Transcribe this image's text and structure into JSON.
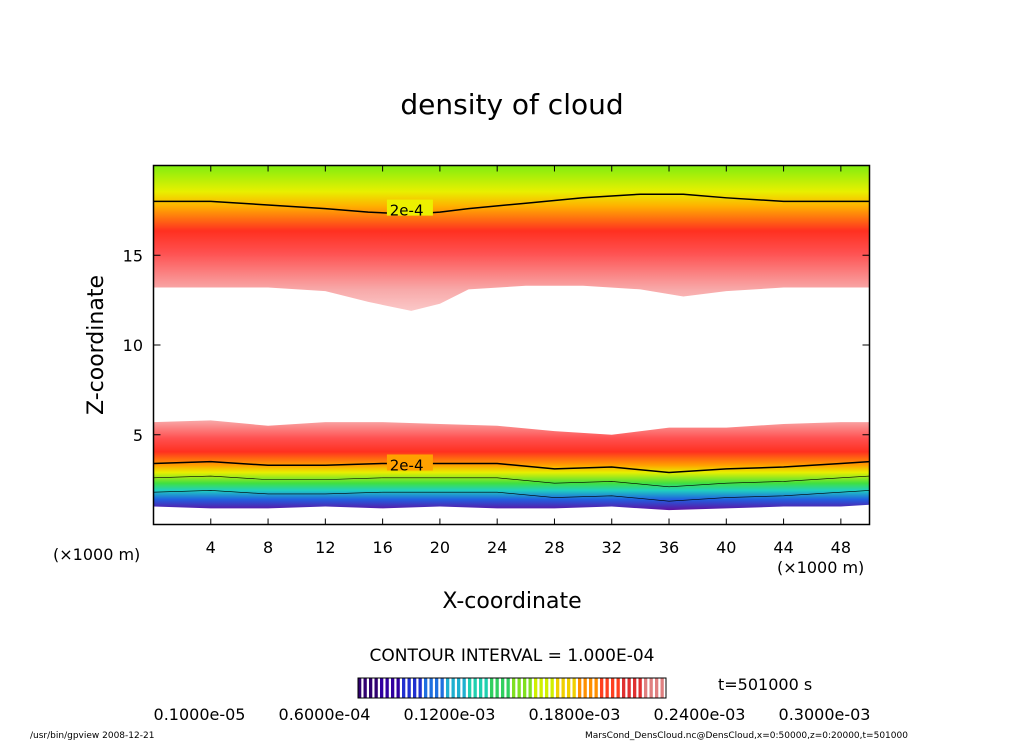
{
  "chart_data": {
    "type": "heatmap",
    "title": "density of cloud",
    "xlabel": "X-coordinate",
    "ylabel": "Z-coordinate",
    "x_unit": "(×1000 m)",
    "y_unit": "(×1000 m)",
    "xlim": [
      0,
      50
    ],
    "ylim": [
      0,
      20
    ],
    "x_ticks": [
      4,
      8,
      12,
      16,
      20,
      24,
      28,
      32,
      36,
      40,
      44,
      48
    ],
    "y_ticks": [
      5,
      10,
      15
    ],
    "contour_label": "2e-4",
    "contour_interval": "CONTOUR INTERVAL = 1.000E-04",
    "colorbar_labels": [
      "0.1000e-05",
      "0.6000e-04",
      "0.1200e-03",
      "0.1800e-03",
      "0.2400e-03",
      "0.3000e-03"
    ],
    "time_label": "t=501000 s",
    "upper_cloud": {
      "x": [
        0,
        4,
        8,
        12,
        15,
        18,
        20,
        22,
        26,
        30,
        34,
        37,
        40,
        44,
        48,
        50
      ],
      "bottom_z": [
        13.2,
        13.2,
        13.2,
        13.0,
        12.4,
        11.9,
        12.3,
        13.1,
        13.3,
        13.3,
        13.1,
        12.7,
        13.0,
        13.2,
        13.2,
        13.2
      ],
      "contour_2e4_z": [
        18.0,
        18.0,
        17.8,
        17.6,
        17.4,
        17.3,
        17.4,
        17.6,
        17.9,
        18.2,
        18.4,
        18.4,
        18.2,
        18.0,
        18.0,
        18.0
      ]
    },
    "lower_cloud": {
      "x": [
        0,
        4,
        8,
        12,
        16,
        20,
        24,
        28,
        32,
        36,
        40,
        44,
        48,
        50
      ],
      "top_z": [
        5.7,
        5.8,
        5.5,
        5.7,
        5.7,
        5.6,
        5.5,
        5.2,
        5.0,
        5.4,
        5.4,
        5.6,
        5.7,
        5.7
      ],
      "contour_2e4_z": [
        3.4,
        3.5,
        3.3,
        3.3,
        3.4,
        3.4,
        3.4,
        3.1,
        3.2,
        2.9,
        3.1,
        3.2,
        3.4,
        3.5
      ],
      "bottom_z": [
        1.0,
        0.9,
        0.9,
        1.0,
        0.9,
        1.0,
        0.9,
        0.9,
        1.0,
        0.8,
        0.9,
        1.0,
        1.0,
        1.1
      ]
    }
  },
  "footer": {
    "program": "/usr/bin/gpview   2008-12-21",
    "source": "MarsCond_DensCloud.nc@DensCloud,x=0:50000,z=0:20000,t=501000"
  },
  "colors": {
    "green": "#7fe800",
    "yellow": "#f0f000",
    "orange": "#ff9a00",
    "red": "#ff2020",
    "pink": "#f8a0a0",
    "cyan": "#20d0d0",
    "blue": "#2060e0",
    "purple": "#6010a0"
  }
}
